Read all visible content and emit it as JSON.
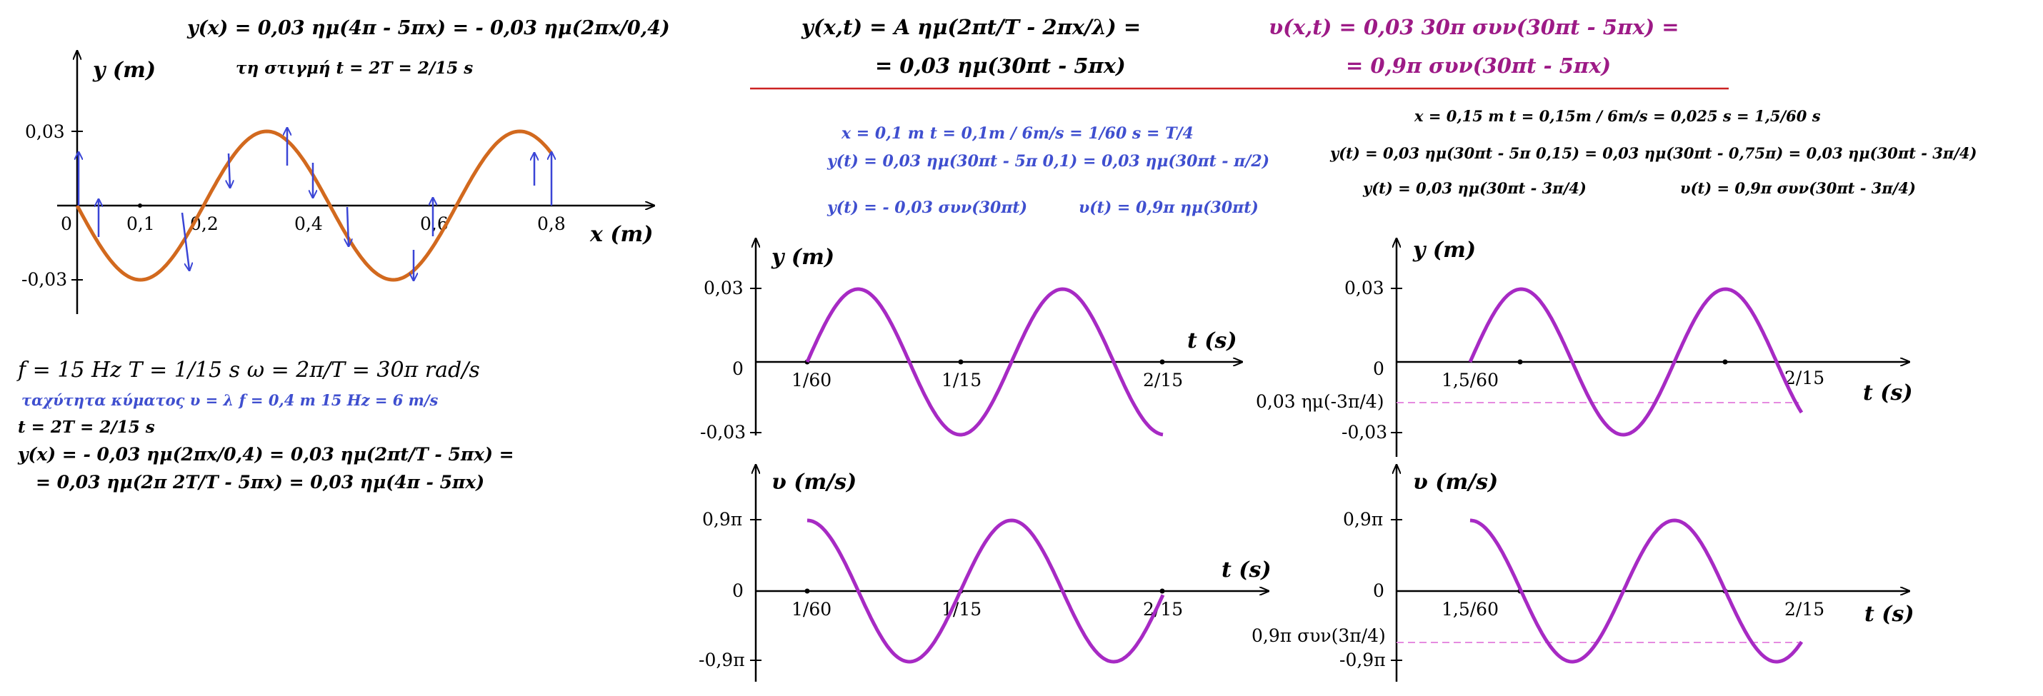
{
  "colors": {
    "black": "#000000",
    "wave": "#d2691e",
    "purple": "#a72ac4",
    "arrow": "#3a45d6",
    "magenta_text": "#9d1a86",
    "blue_text": "#3f4fcf",
    "red_rule": "#cc2222",
    "pink_dash": "#e58be0"
  },
  "left": {
    "title_eq": "y(x) = 0,03 ημ(4π - 5πx) = - 0,03 ημ(2πx/0,4)",
    "instant": "τη στιγμή  t = 2T = 2/15 s",
    "graph": {
      "y_label": "y (m)",
      "x_label": "x (m)",
      "y_ticks": [
        "0,03",
        "-0,03"
      ],
      "x_ticks": [
        "0",
        "0,1",
        "0,2",
        "0,4",
        "0,6",
        "0,8"
      ]
    },
    "info": {
      "line1": "f = 15 Hz    T = 1/15 s    ω = 2π/T = 30π rad/s",
      "line2": "ταχύτητα κύματος   υ = λ f = 0,4 m 15 Hz = 6 m/s",
      "line3": "t = 2T = 2/15 s",
      "line4": "y(x) = - 0,03 ημ(2πx/0,4) = 0,03 ημ(2πt/T - 5πx) =",
      "line5": "= 0,03 ημ(2π 2T/T - 5πx) = 0,03 ημ(4π - 5πx)"
    }
  },
  "header": {
    "wave_eq_1": "y(x,t) = A ημ(2πt/T - 2πx/λ) =",
    "wave_eq_2": "= 0,03 ημ(30πt - 5πx)",
    "vel_eq_1": "υ(x,t) = 0,03 30π συν(30πt - 5πx) =",
    "vel_eq_2": "= 0,9π συν(30πt - 5πx)"
  },
  "mid": {
    "eq1": "x = 0,1 m     t = 0,1m / 6m/s = 1/60 s  = T/4",
    "eq2": "y(t) = 0,03 ημ(30πt - 5π  0,1)  = 0,03 ημ(30πt -  π/2)",
    "eq3a": "y(t) = - 0,03 συν(30πt)",
    "eq3b": "υ(t) = 0,9π ημ(30πt)"
  },
  "right": {
    "eq1": "x = 0,15 m        t = 0,15m / 6m/s = 0,025 s = 1,5/60 s",
    "eq2": "y(t) = 0,03 ημ(30πt - 5π 0,15) = 0,03 ημ(30πt - 0,75π) =  0,03 ημ(30πt - 3π/4)",
    "eq3a": "y(t) = 0,03 ημ(30πt - 3π/4)",
    "eq3b": "υ(t) = 0,9π συν(30πt - 3π/4)"
  },
  "graphs": {
    "mid_y": {
      "y_label": "y (m)",
      "t_label": "t (s)",
      "y_ticks": [
        "0,03",
        "0",
        "-0,03"
      ],
      "t_ticks": [
        "1/60",
        "1/15",
        "2/15"
      ]
    },
    "mid_v": {
      "y_label": "υ (m/s)",
      "t_label": "t (s)",
      "y_ticks": [
        "0,9π",
        "0",
        "-0,9π"
      ],
      "t_ticks": [
        "1/60",
        "1/15",
        "2/15"
      ]
    },
    "right_y": {
      "y_label": "y (m)",
      "t_label": "t (s)",
      "y_ticks": [
        "0,03",
        "0",
        "-0,03"
      ],
      "t_ticks": [
        "1,5/60",
        "2/15"
      ],
      "dash_label": "0,03 ημ(-3π/4)"
    },
    "right_v": {
      "y_label": "υ (m/s)",
      "t_label": "t (s)",
      "y_ticks": [
        "0,9π",
        "0",
        "-0,9π"
      ],
      "t_ticks": [
        "1,5/60",
        "2/15"
      ],
      "dash_label": "0,9π συν(3π/4)"
    }
  }
}
